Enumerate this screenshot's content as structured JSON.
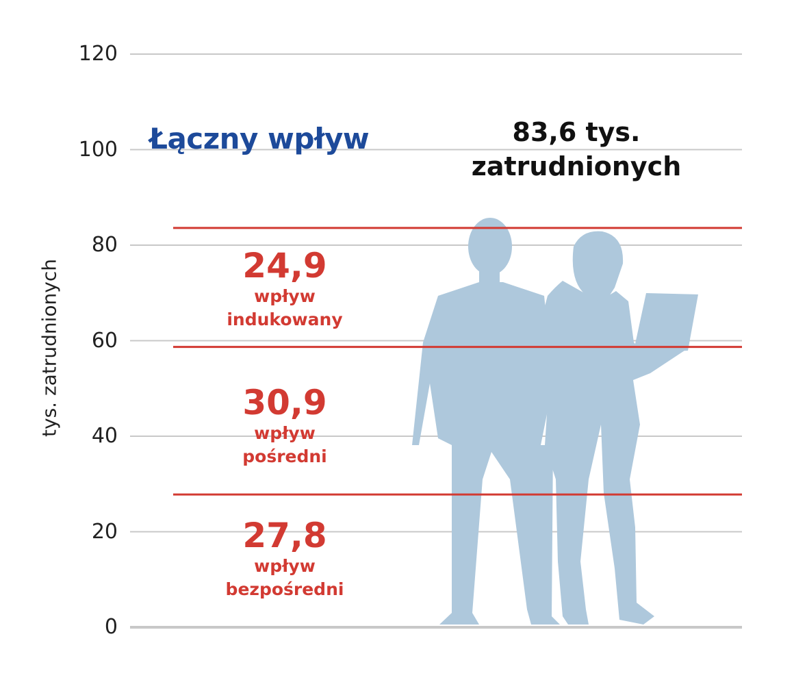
{
  "chart_data": {
    "type": "bar",
    "title": "Łączny wpływ",
    "ylabel": "tys. zatrudnionych",
    "ylim": [
      0,
      120
    ],
    "yticks": [
      "0",
      "20",
      "40",
      "60",
      "80",
      "100",
      "120"
    ],
    "total": {
      "value": "83,6 tys.",
      "unit": "zatrudnionych",
      "number": 83.6
    },
    "series": [
      {
        "name": "wpływ bezpośredni",
        "label_value": "27,8",
        "label_line1": "wpływ",
        "label_line2": "bezpośredni",
        "value": 27.8
      },
      {
        "name": "wpływ pośredni",
        "label_value": "30,9",
        "label_line1": "wpływ",
        "label_line2": "pośredni",
        "value": 30.9
      },
      {
        "name": "wpływ indukowany",
        "label_value": "24,9",
        "label_line1": "wpływ",
        "label_line2": "indukowany",
        "value": 24.9
      }
    ],
    "colors": {
      "segment": "#d23a32",
      "title": "#1d4a9a",
      "silhouette": "#aec8dc",
      "grid": "#c8c8c8"
    },
    "grid": true
  }
}
